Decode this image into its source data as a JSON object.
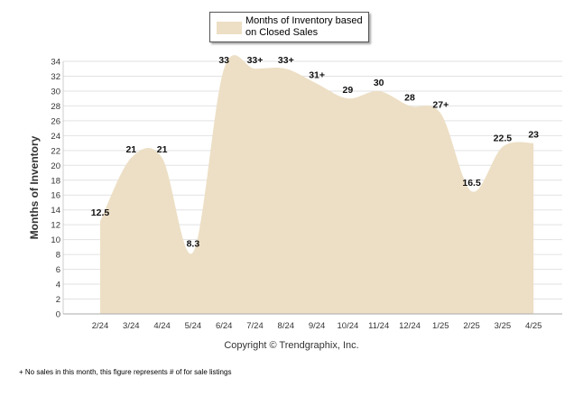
{
  "chart_data": {
    "type": "area",
    "categories": [
      "2/24",
      "3/24",
      "4/24",
      "5/24",
      "6/24",
      "7/24",
      "8/24",
      "9/24",
      "10/24",
      "11/24",
      "12/24",
      "1/25",
      "2/25",
      "3/25",
      "4/25"
    ],
    "series": [
      {
        "name": "Months of Inventory based on Closed Sales",
        "values": [
          12.5,
          21,
          21,
          8.3,
          33,
          33,
          33,
          31,
          29,
          30,
          28,
          27,
          16.5,
          22.5,
          23
        ],
        "labels": [
          "12.5",
          "21",
          "21",
          "8.3",
          "33",
          "33+",
          "33+",
          "31+",
          "29",
          "30",
          "28",
          "27+",
          "16.5",
          "22.5",
          "23"
        ]
      }
    ],
    "ylabel": "Months of Inventory",
    "xlabel": "",
    "ylim": [
      0,
      34
    ],
    "yticks": [
      0,
      2,
      4,
      6,
      8,
      10,
      12,
      14,
      16,
      18,
      20,
      22,
      24,
      26,
      28,
      30,
      32,
      34
    ],
    "grid": true,
    "legend_position": "top-center",
    "fill_color": "#eddfc5",
    "copyright": "Copyright © Trendgraphix, Inc.",
    "footnote": "+ No sales in this month, this figure represents # of for sale listings"
  }
}
